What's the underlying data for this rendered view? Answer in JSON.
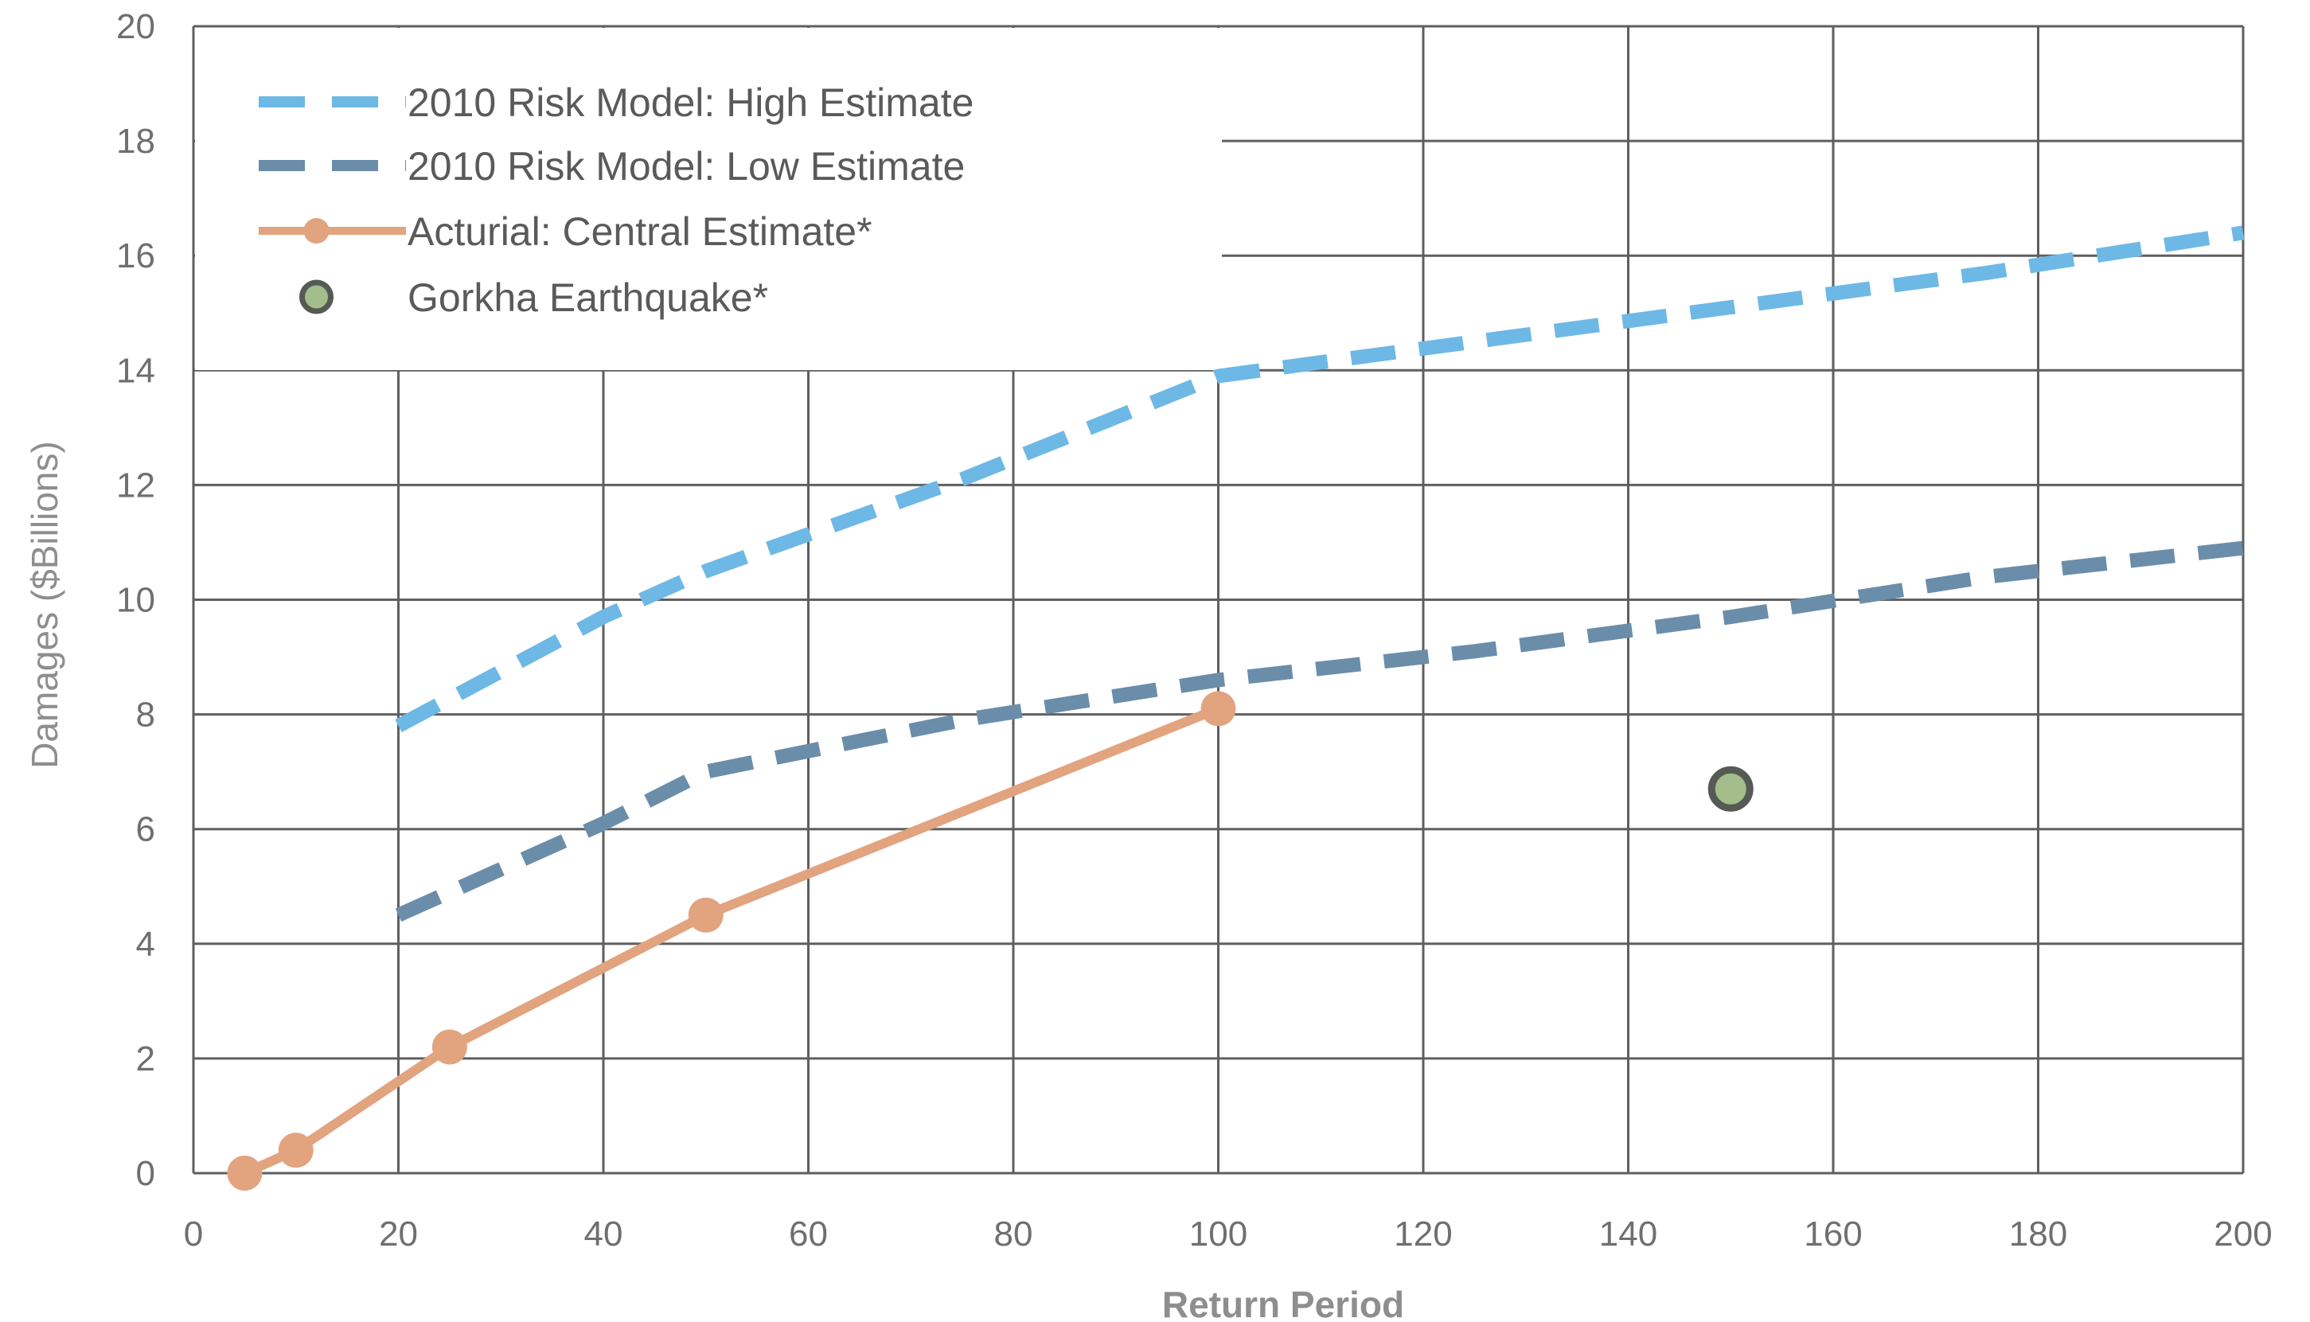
{
  "chart_data": {
    "type": "line",
    "title": "",
    "xlabel": "Return Period",
    "ylabel": "Damages ($Billions)",
    "xlim": [
      0,
      200
    ],
    "ylim": [
      0,
      20
    ],
    "x_ticks": [
      0,
      20,
      40,
      60,
      80,
      100,
      120,
      140,
      160,
      180,
      200
    ],
    "y_ticks": [
      0,
      2,
      4,
      6,
      8,
      10,
      12,
      14,
      16,
      18,
      20
    ],
    "grid": true,
    "legend_position": "top-left",
    "series": [
      {
        "name": "2010 Risk Model: High Estimate",
        "style": "dashed",
        "color": "#6eb8e6",
        "points": [
          [
            20,
            7.8
          ],
          [
            40,
            9.7
          ],
          [
            50,
            10.5
          ],
          [
            75,
            12.1
          ],
          [
            100,
            13.9
          ],
          [
            125,
            14.5
          ],
          [
            150,
            15.1
          ],
          [
            175,
            15.7
          ],
          [
            200,
            16.4
          ]
        ]
      },
      {
        "name": "2010 Risk Model: Low Estimate",
        "style": "dashed",
        "color": "#6a8daa",
        "points": [
          [
            20,
            4.5
          ],
          [
            40,
            6.1
          ],
          [
            50,
            7.0
          ],
          [
            75,
            7.9
          ],
          [
            100,
            8.6
          ],
          [
            125,
            9.1
          ],
          [
            150,
            9.7
          ],
          [
            175,
            10.4
          ],
          [
            200,
            10.9
          ]
        ]
      },
      {
        "name": "Acturial: Central Estimate*",
        "style": "solid-markers",
        "color": "#e2a37f",
        "points": [
          [
            5,
            0.0
          ],
          [
            10,
            0.4
          ],
          [
            25,
            2.2
          ],
          [
            50,
            4.5
          ],
          [
            100,
            8.1
          ]
        ]
      },
      {
        "name": "Gorkha Earthquake*",
        "style": "point",
        "color": "#a3be8a",
        "edge_color": "#555a55",
        "points": [
          [
            150,
            6.7
          ]
        ]
      }
    ]
  }
}
